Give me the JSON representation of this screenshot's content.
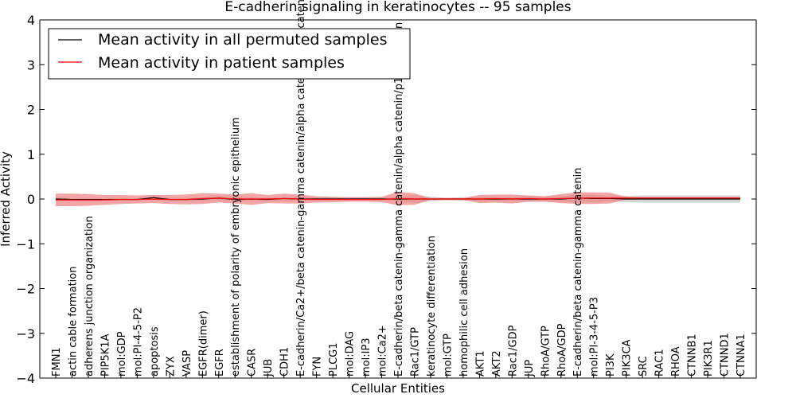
{
  "chart_data": {
    "type": "line",
    "title": "E-cadherin signaling in keratinocytes -- 95 samples",
    "xlabel": "Cellular Entities",
    "ylabel": "Inferred Activity",
    "ylim": [
      -4,
      4
    ],
    "yticks": [
      -4,
      -3,
      -2,
      -1,
      0,
      1,
      2,
      3,
      4
    ],
    "ytick_labels": [
      "−4",
      "−3",
      "−2",
      "−1",
      "0",
      "1",
      "2",
      "3",
      "4"
    ],
    "legend_position": "top-left",
    "categories": [
      "FMN1",
      "actin cable formation",
      "adherens junction organization",
      "PIP5K1A",
      "mol:GDP",
      "mol:PI-4-5-P2",
      "apoptosis",
      "ZYX",
      "VASP",
      "EGFR(dimer)",
      "EGFR",
      "establishment of polarity of embryonic epithelium",
      "CASR",
      "JUB",
      "CDH1",
      "E-cadherin/Ca2+/beta catenin-gamma catenin/alpha catenin/p120 catenin",
      "FYN",
      "PLCG1",
      "mol:DAG",
      "mol:IP3",
      "mol:Ca2+",
      "E-cadherin/beta catenin-gamma catenin/alpha catenin/p120 catenin",
      "Rac1/GTP",
      "keratinocyte differentiation",
      "mol:GTP",
      "homophilic cell adhesion",
      "AKT1",
      "AKT2",
      "Rac1/GDP",
      "JUP",
      "RhoA/GTP",
      "RhoA/GDP",
      "E-cadherin/beta catenin-gamma catenin",
      "mol:PI-3-4-5-P3",
      "PI3K",
      "PIK3CA",
      "SRC",
      "RAC1",
      "RHOA",
      "CTNNB1",
      "PIK3R1",
      "CTNND1",
      "CTNNA1"
    ],
    "series": [
      {
        "name": "Mean activity in all permuted samples",
        "color": "#000000",
        "values": [
          0.0,
          -0.01,
          -0.01,
          -0.01,
          -0.01,
          -0.01,
          0.03,
          -0.01,
          -0.01,
          0.0,
          0.02,
          -0.01,
          0.0,
          -0.01,
          0.01,
          0.0,
          0.0,
          0.0,
          0.0,
          0.0,
          0.0,
          0.0,
          0.0,
          0.0,
          0.0,
          0.0,
          0.0,
          0.0,
          0.0,
          0.0,
          0.0,
          0.0,
          0.02,
          0.01,
          0.01,
          0.0,
          0.0,
          0.0,
          0.0,
          0.0,
          0.0,
          0.0,
          0.0
        ],
        "band": [
          0.03,
          0.03,
          0.03,
          0.03,
          0.03,
          0.03,
          0.05,
          0.04,
          0.04,
          0.04,
          0.05,
          0.04,
          0.04,
          0.04,
          0.04,
          0.04,
          0.04,
          0.04,
          0.04,
          0.04,
          0.04,
          0.05,
          0.09,
          0.05,
          0.03,
          0.04,
          0.05,
          0.05,
          0.05,
          0.06,
          0.06,
          0.06,
          0.08,
          0.08,
          0.06,
          0.07,
          0.08,
          0.08,
          0.08,
          0.08,
          0.08,
          0.08,
          0.08
        ],
        "band_color": "#c8c8c8"
      },
      {
        "name": "Mean activity in patient samples",
        "color": "#ff0000",
        "values": [
          -0.02,
          -0.02,
          -0.02,
          -0.02,
          -0.01,
          -0.01,
          0.0,
          -0.01,
          -0.01,
          0.01,
          0.02,
          0.0,
          0.0,
          0.0,
          0.01,
          0.0,
          -0.01,
          -0.01,
          -0.01,
          -0.01,
          -0.01,
          0.01,
          0.0,
          0.0,
          0.0,
          0.0,
          0.0,
          0.01,
          0.0,
          0.01,
          0.0,
          0.01,
          0.02,
          0.02,
          0.02,
          0.02,
          0.02,
          0.02,
          0.02,
          0.02,
          0.02,
          0.02,
          0.02
        ],
        "band": [
          0.14,
          0.14,
          0.13,
          0.11,
          0.1,
          0.09,
          0.09,
          0.1,
          0.11,
          0.12,
          0.1,
          0.1,
          0.13,
          0.09,
          0.11,
          0.1,
          0.07,
          0.06,
          0.05,
          0.05,
          0.06,
          0.15,
          0.13,
          0.02,
          0.02,
          0.02,
          0.09,
          0.09,
          0.1,
          0.07,
          0.06,
          0.1,
          0.13,
          0.13,
          0.12,
          0.03,
          0.02,
          0.02,
          0.02,
          0.02,
          0.02,
          0.02,
          0.02
        ],
        "band_color": "#f08080"
      }
    ]
  }
}
